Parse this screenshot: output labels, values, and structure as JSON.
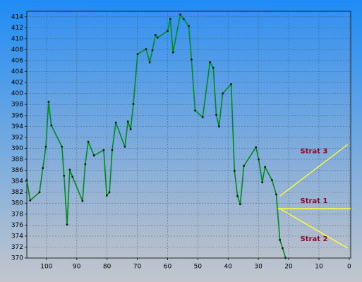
{
  "chart_data": {
    "type": "line",
    "xlim": [
      106.5,
      -0.5
    ],
    "xticks": [
      100,
      90,
      80,
      70,
      60,
      50,
      40,
      30,
      20,
      10,
      0
    ],
    "ylim": [
      370,
      415
    ],
    "yticks": [
      370,
      372,
      374,
      376,
      378,
      380,
      382,
      384,
      386,
      388,
      390,
      392,
      394,
      396,
      398,
      400,
      402,
      404,
      406,
      408,
      410,
      412,
      414
    ],
    "grid": true,
    "series": [
      {
        "color": "#008a1e",
        "markers": true,
        "x": [
          106.5,
          105.4,
          102.3,
          101.2,
          100.2,
          99.3,
          98.4,
          94.9,
          94.2,
          93.2,
          92.3,
          91.4,
          88.1,
          87.2,
          86.2,
          84.3,
          81.1,
          80.1,
          79.2,
          78.3,
          77.1,
          74.1,
          73.1,
          72.2,
          71.3,
          69.9,
          67.1,
          65.9,
          65,
          64,
          63.3,
          60,
          59.1,
          58.2,
          55.8,
          54.7,
          53,
          52.1,
          50.9,
          48.4,
          46,
          44.9,
          43.9,
          43,
          41.8,
          39,
          37.9,
          36.9,
          36,
          34.8,
          30.8,
          29.9,
          28.7,
          27.8,
          25.5,
          24.1,
          22.9,
          22,
          21
        ],
        "values": [
          384.2,
          380.5,
          382,
          386.4,
          390.3,
          398.5,
          394.2,
          390.3,
          385,
          376.1,
          386.1,
          384.8,
          380.4,
          387.1,
          391.2,
          388.7,
          389.7,
          381.4,
          382,
          389.7,
          394.7,
          390.3,
          394.9,
          393.5,
          398.1,
          407.2,
          408.1,
          405.7,
          407.9,
          410.7,
          410.2,
          411.4,
          413.6,
          407.5,
          414.4,
          413.6,
          412.3,
          406.2,
          396.9,
          395.7,
          405.7,
          404.7,
          396.1,
          394,
          400,
          401.7,
          385.9,
          381.3,
          379.8,
          386.8,
          390.2,
          388,
          383.8,
          386.6,
          384.2,
          381.6,
          373.3,
          371.8,
          370
        ]
      },
      {
        "name": "Strat 1",
        "color": "#ffff33",
        "x": [
          23.6,
          -0.5
        ],
        "values": [
          379,
          379
        ]
      },
      {
        "name": "Strat 2",
        "color": "#ffff33",
        "x": [
          22.9,
          0.5
        ],
        "values": [
          379,
          371.8
        ]
      },
      {
        "name": "Strat 3",
        "color": "#ffff33",
        "x": [
          22.9,
          0.5
        ],
        "values": [
          381.3,
          390.7
        ]
      }
    ]
  }
}
